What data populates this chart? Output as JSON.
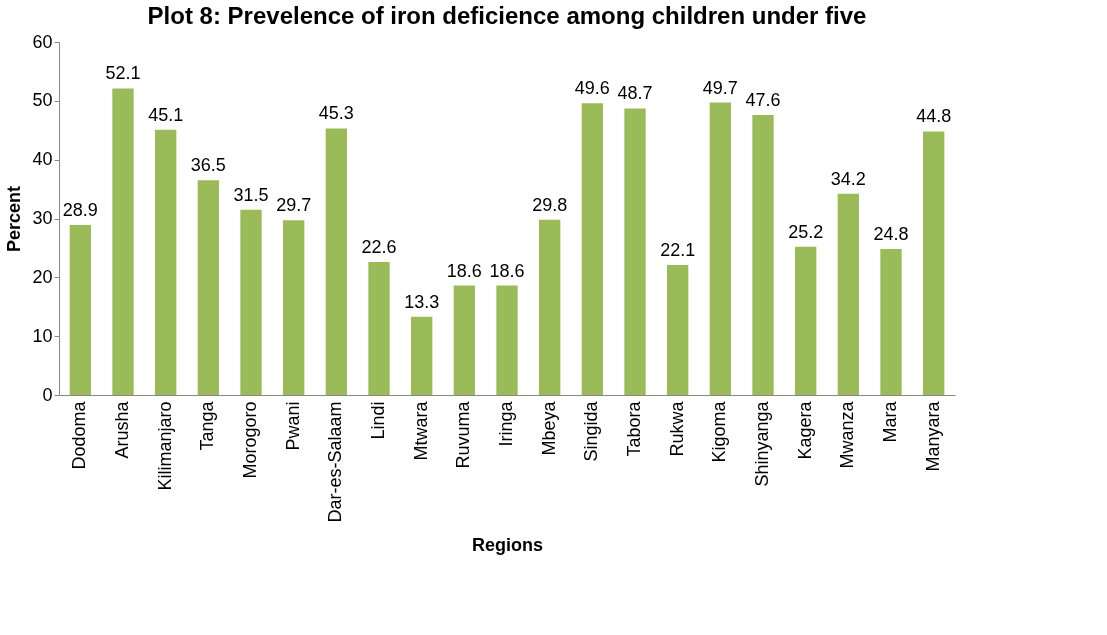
{
  "chart_data": {
    "type": "bar",
    "title": "Plot 8: Prevelence of iron deficience among children under five",
    "xlabel": "Regions",
    "ylabel": "Percent",
    "categories": [
      "Dodoma",
      "Arusha",
      "Kilimanjaro",
      "Tanga",
      "Morogoro",
      "Pwani",
      "Dar-es-Salaam",
      "Lindi",
      "Mtwara",
      "Ruvuma",
      "Iringa",
      "Mbeya",
      "Singida",
      "Tabora",
      "Rukwa",
      "Kigoma",
      "Shinyanga",
      "Kagera",
      "Mwanza",
      "Mara",
      "Manyara"
    ],
    "values": [
      28.9,
      52.1,
      45.1,
      36.5,
      31.5,
      29.7,
      45.3,
      22.6,
      13.3,
      18.6,
      18.6,
      29.8,
      49.6,
      48.7,
      22.1,
      49.7,
      47.6,
      25.2,
      34.2,
      24.8,
      44.8
    ],
    "color": "#9bbb59",
    "ylim": [
      0,
      60
    ],
    "yticks": [
      0,
      10,
      20,
      30,
      40,
      50,
      60
    ],
    "grid": false,
    "data_labels": true
  }
}
